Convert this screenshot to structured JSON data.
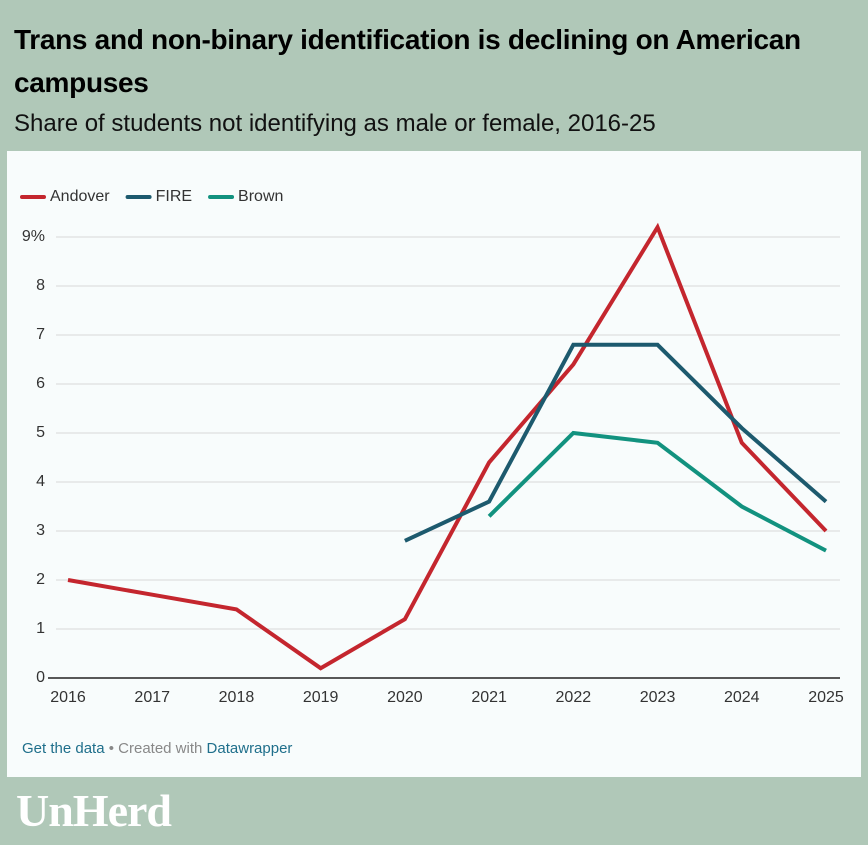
{
  "chart_data": {
    "type": "line",
    "title": "Trans and non-binary identification is declining on American campuses",
    "subtitle": "Share of students not identifying as male or female, 2016-25",
    "x": [
      2016,
      2017,
      2018,
      2019,
      2020,
      2021,
      2022,
      2023,
      2024,
      2025
    ],
    "xlim": [
      2016,
      2025
    ],
    "xticks": [
      2016,
      2017,
      2018,
      2019,
      2020,
      2021,
      2022,
      2023,
      2024,
      2025
    ],
    "ylim": [
      0,
      9
    ],
    "yticks": [
      0,
      1,
      2,
      3,
      4,
      5,
      6,
      7,
      8,
      {
        "value": 9,
        "label": "9%"
      }
    ],
    "grid": true,
    "legend": "top-left",
    "series": [
      {
        "name": "Andover",
        "color": "#c4262e",
        "values": [
          2.0,
          1.7,
          1.4,
          0.2,
          1.2,
          4.4,
          6.4,
          9.2,
          4.8,
          3.0
        ]
      },
      {
        "name": "FIRE",
        "color": "#1d5a6e",
        "values": [
          null,
          null,
          null,
          null,
          2.8,
          3.6,
          6.8,
          6.8,
          5.1,
          3.6
        ]
      },
      {
        "name": "Brown",
        "color": "#12927f",
        "values": [
          null,
          null,
          null,
          null,
          null,
          3.3,
          5.0,
          4.8,
          3.5,
          2.6
        ]
      }
    ]
  },
  "footer": {
    "data_link": "Get the data",
    "credit": "• Created with",
    "tool": "Datawrapper"
  },
  "brand": "UnHerd"
}
